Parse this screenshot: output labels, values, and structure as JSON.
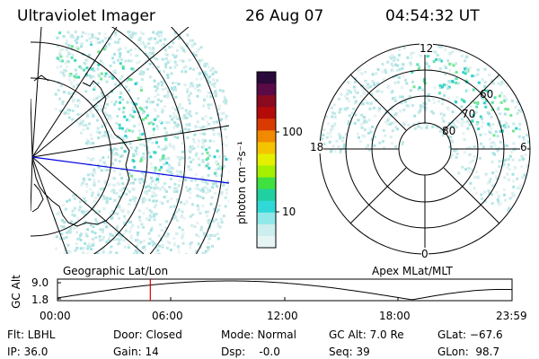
{
  "header": {
    "title": "Ultraviolet Imager",
    "date": "26 Aug 07",
    "time": "04:54:32 UT"
  },
  "left_panel": {
    "caption": "Geographic Lat/Lon"
  },
  "right_panel": {
    "caption": "Apex MLat/MLT",
    "mlt_labels": [
      "12",
      "18",
      "6",
      "0"
    ],
    "lat_labels": [
      "80",
      "70",
      "60"
    ]
  },
  "colorbar": {
    "unit_label": "photon cm⁻²s⁻¹",
    "tick_labels": [
      "100",
      "10"
    ],
    "colors": [
      "#2a0a3a",
      "#5a0a46",
      "#8a0a20",
      "#b40a0a",
      "#d83a00",
      "#f08a00",
      "#f4c400",
      "#e4f000",
      "#a4f000",
      "#40e040",
      "#20d0a0",
      "#30d8d8",
      "#90e8e8",
      "#cceeee",
      "#e6f4f4"
    ]
  },
  "altitude_plot": {
    "ylabel": "GC Alt",
    "y_ticks": [
      "9.0",
      "1.8"
    ],
    "x_ticks": [
      "00:00",
      "06:00",
      "12:00",
      "18:00",
      "23:59"
    ],
    "current_time_fraction": 0.2042
  },
  "info": {
    "flt": "Flt: LBHL",
    "ip": "IP: 36.0",
    "door": "Door: Closed",
    "gain": "Gain: 14",
    "mode": "Mode: Normal",
    "dsp": "Dsp:    -0.0",
    "gc_alt": "GC Alt: 7.0 Re",
    "seq": "Seq: 39",
    "glat": "GLat: −67.6",
    "glon": "GLon:  98.7"
  }
}
